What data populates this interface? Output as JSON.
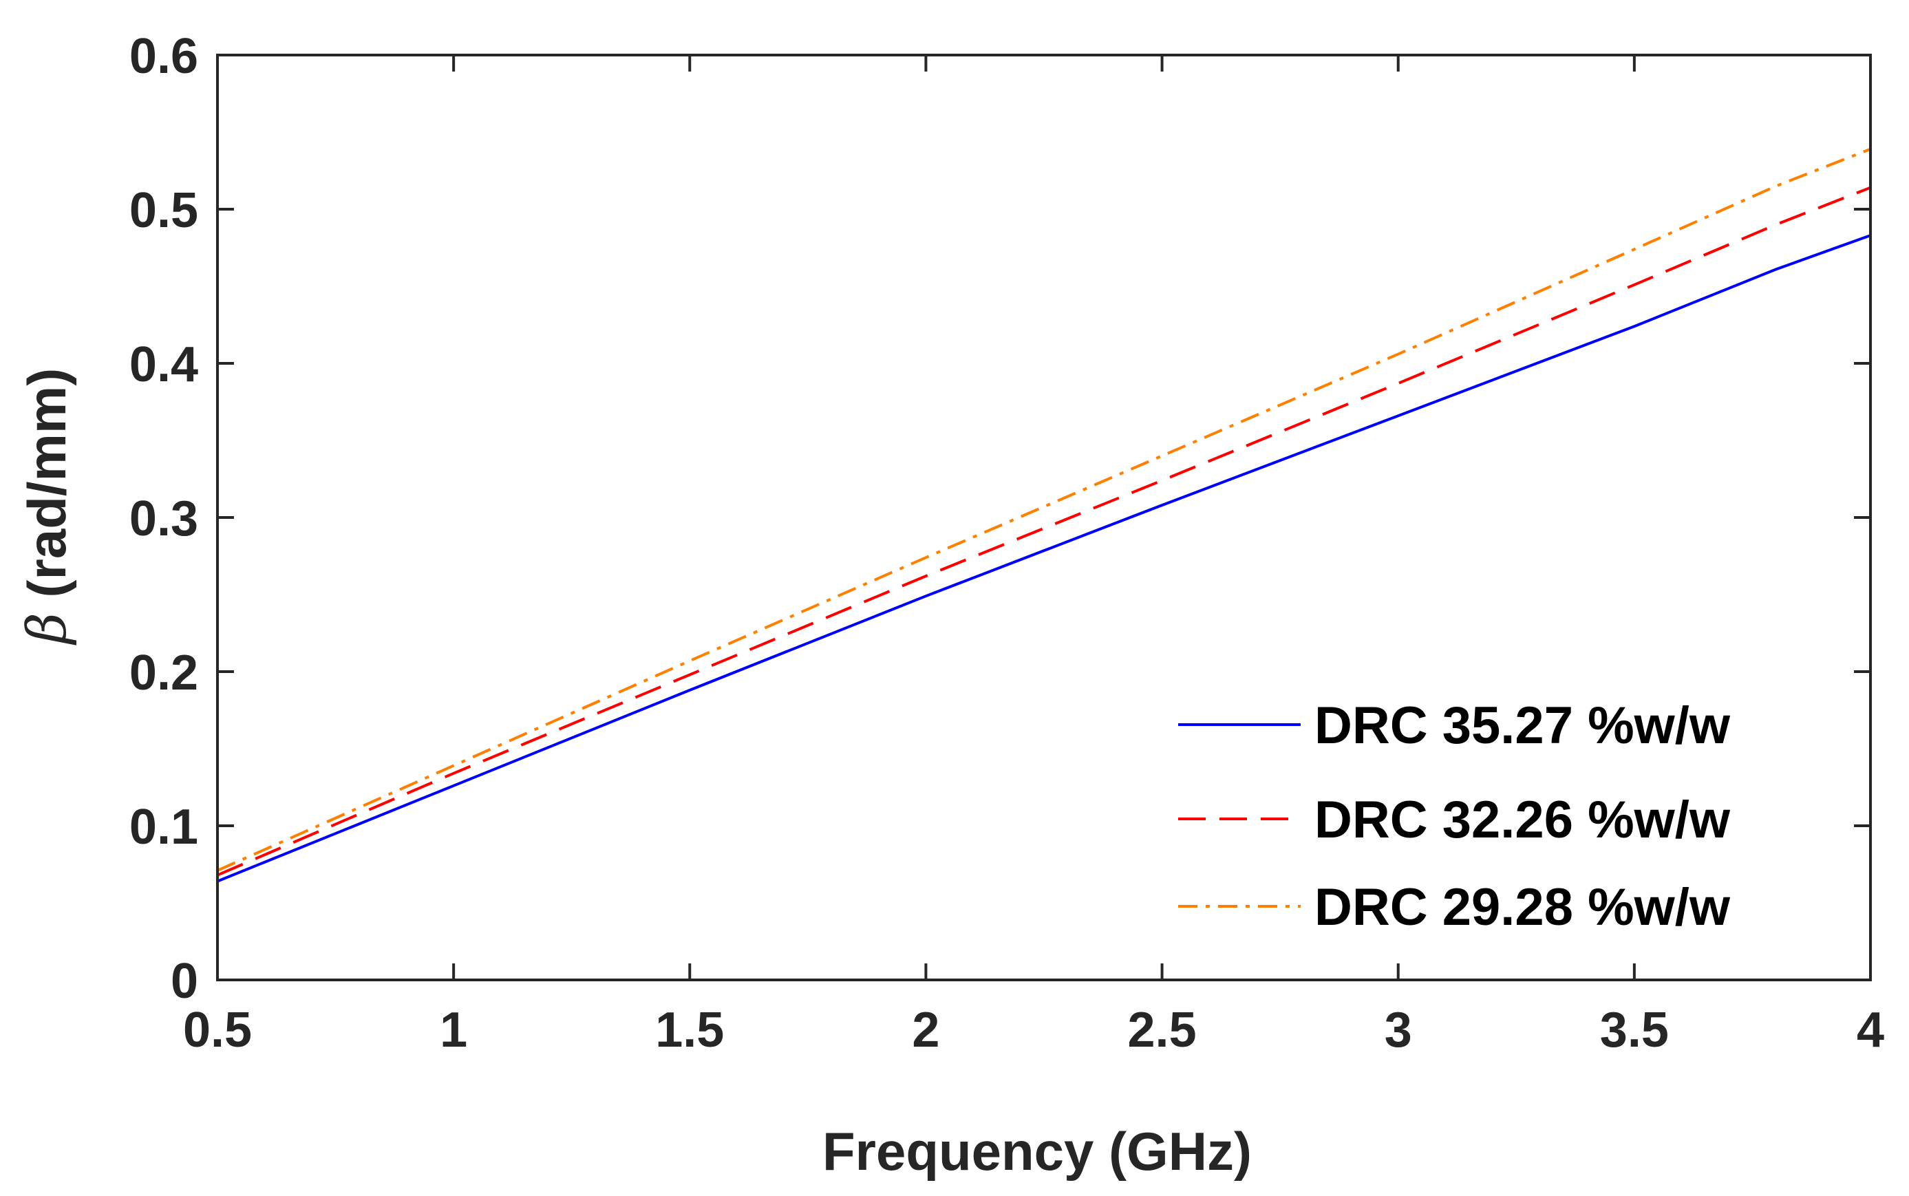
{
  "chart_data": {
    "type": "line",
    "title": "",
    "xlabel": "Frequency (GHz)",
    "ylabel": {
      "symbol": "β",
      "text": " (rad/mm)"
    },
    "xlim": [
      0.5,
      4
    ],
    "ylim": [
      0,
      0.6
    ],
    "xticks": [
      0.5,
      1,
      1.5,
      2,
      2.5,
      3,
      3.5,
      4
    ],
    "xtick_labels": [
      "0.5",
      "1",
      "1.5",
      "2",
      "2.5",
      "3",
      "3.5",
      "4"
    ],
    "yticks": [
      0,
      0.1,
      0.2,
      0.3,
      0.4,
      0.5,
      0.6
    ],
    "ytick_labels": [
      "0",
      "0.1",
      "0.2",
      "0.3",
      "0.4",
      "0.5",
      "0.6"
    ],
    "grid": false,
    "legend_position": "bottom-right",
    "x": [
      0.5,
      1.0,
      1.5,
      2.0,
      2.5,
      3.0,
      3.5,
      3.8,
      4.0
    ],
    "series": [
      {
        "name": "DRC 35.27 %w/w",
        "color": "#0000ff",
        "style": "solid",
        "values": [
          0.064,
          0.126,
          0.188,
          0.249,
          0.308,
          0.366,
          0.424,
          0.461,
          0.483
        ]
      },
      {
        "name": "DRC 32.26 %w/w",
        "color": "#ff0000",
        "style": "dashed",
        "values": [
          0.068,
          0.134,
          0.198,
          0.262,
          0.324,
          0.387,
          0.451,
          0.49,
          0.514
        ]
      },
      {
        "name": "DRC 29.28 %w/w",
        "color": "#ff8000",
        "style": "dashdot",
        "values": [
          0.071,
          0.139,
          0.207,
          0.274,
          0.34,
          0.406,
          0.474,
          0.515,
          0.539
        ]
      }
    ]
  }
}
